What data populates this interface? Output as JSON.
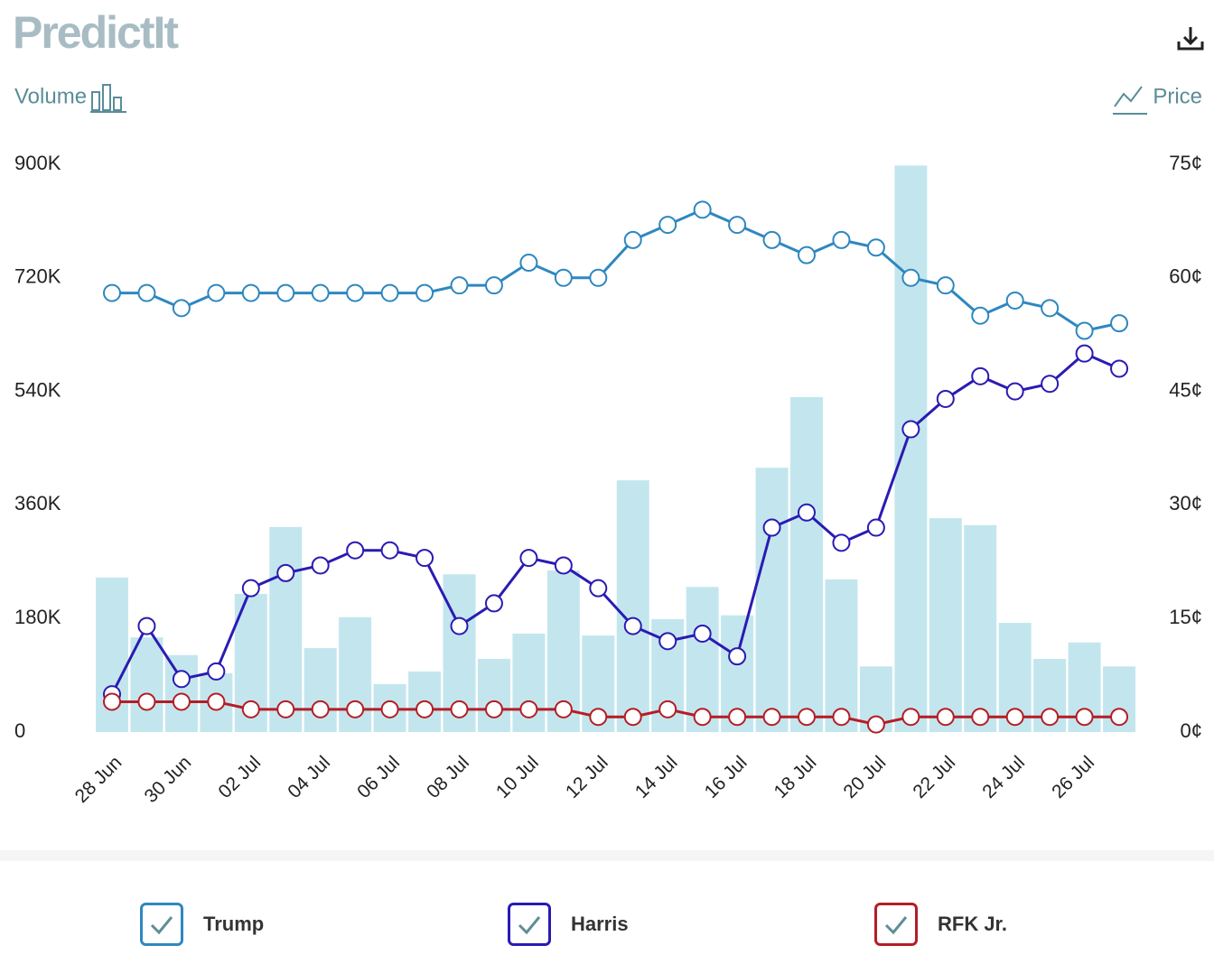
{
  "logo": "PredictIt",
  "chart_data": {
    "type": "combo",
    "ylabel": "Volume",
    "y2label": "Price",
    "categories": [
      "28 Jun",
      null,
      "30 Jun",
      null,
      "02 Jul",
      null,
      "04 Jul",
      null,
      "06 Jul",
      null,
      "08 Jul",
      null,
      "10 Jul",
      null,
      "12 Jul",
      null,
      "14 Jul",
      null,
      "16 Jul",
      null,
      "18 Jul",
      null,
      "20 Jul",
      null,
      "22 Jul",
      null,
      "24 Jul",
      null,
      "26 Jul",
      null
    ],
    "ylim": [
      0,
      900000
    ],
    "yticks": [
      {
        "value": 0,
        "label": "0"
      },
      {
        "value": 180000,
        "label": "180K"
      },
      {
        "value": 360000,
        "label": "360K"
      },
      {
        "value": 540000,
        "label": "540K"
      },
      {
        "value": 720000,
        "label": "720K"
      },
      {
        "value": 900000,
        "label": "900K"
      }
    ],
    "y2lim": [
      0,
      75
    ],
    "y2ticks": [
      {
        "value": 0,
        "label": "0¢"
      },
      {
        "value": 15,
        "label": "15¢"
      },
      {
        "value": 30,
        "label": "30¢"
      },
      {
        "value": 45,
        "label": "45¢"
      },
      {
        "value": 60,
        "label": "60¢"
      },
      {
        "value": 75,
        "label": "75¢"
      }
    ],
    "series": [
      {
        "type": "bar",
        "color": "#c3e6ee",
        "values": [
          245000,
          150000,
          122000,
          93000,
          219000,
          325000,
          133000,
          182000,
          76000,
          96000,
          250000,
          116000,
          156000,
          256000,
          153000,
          399000,
          179000,
          230000,
          185000,
          419000,
          531000,
          242000,
          104000,
          898000,
          339000,
          328000,
          173000,
          116000,
          142000,
          104000
        ]
      },
      {
        "type": "line",
        "name": "Trump",
        "color": "#2e87c0",
        "axis": "y2",
        "values": [
          58,
          58,
          56,
          58,
          58,
          58,
          58,
          58,
          58,
          58,
          59,
          59,
          62,
          60,
          60,
          65,
          67,
          69,
          67,
          65,
          63,
          65,
          64,
          60,
          59,
          55,
          57,
          56,
          53,
          54
        ]
      },
      {
        "type": "line",
        "name": "Harris",
        "color": "#2a1bb3",
        "axis": "y2",
        "values": [
          5,
          14,
          7,
          8,
          19,
          21,
          22,
          24,
          24,
          23,
          14,
          17,
          23,
          22,
          19,
          14,
          12,
          13,
          10,
          27,
          29,
          25,
          27,
          40,
          44,
          47,
          45,
          46,
          50,
          48
        ]
      },
      {
        "type": "line",
        "name": "RFK Jr.",
        "color": "#b51d25",
        "axis": "y2",
        "values": [
          4,
          4,
          4,
          4,
          3,
          3,
          3,
          3,
          3,
          3,
          3,
          3,
          3,
          3,
          2,
          2,
          3,
          2,
          2,
          2,
          2,
          2,
          1,
          2,
          2,
          2,
          2,
          2,
          2,
          2
        ]
      }
    ]
  }
}
